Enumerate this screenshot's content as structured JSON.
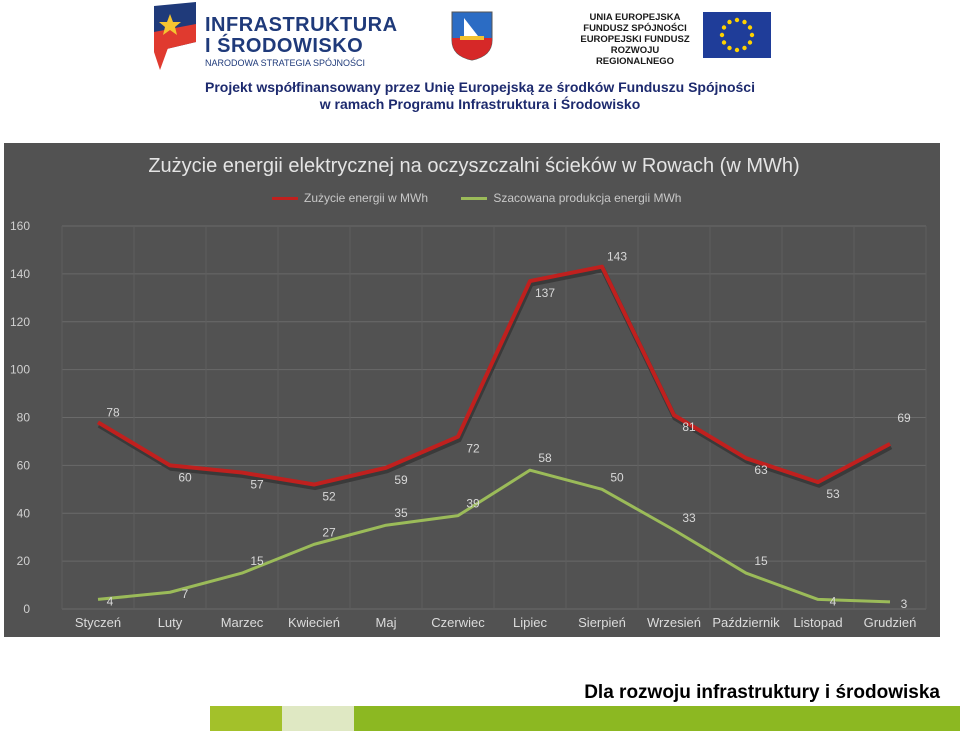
{
  "header": {
    "logo_line1": "INFRASTRUKTURA",
    "logo_line2": "I ŚRODOWISKO",
    "logo_line3": "NARODOWA STRATEGIA SPÓJNOŚCI",
    "eu_line1": "UNIA EUROPEJSKA",
    "eu_line2": "FUNDUSZ SPÓJNOŚCI",
    "eu_line3": "EUROPEJSKI FUNDUSZ",
    "eu_line4": "ROZWOJU REGIONALNEGO",
    "project_line1": "Projekt współfinansowany przez Unię Europejską ze środków Funduszu Spójności",
    "project_line2": "w ramach Programu Infrastruktura i Środowisko"
  },
  "chart_data": {
    "type": "line",
    "title": "Zużycie energii elektrycznej na oczyszczalni ścieków w Rowach (w MWh)",
    "categories": [
      "Styczeń",
      "Luty",
      "Marzec",
      "Kwiecień",
      "Maj",
      "Czerwiec",
      "Lipiec",
      "Sierpień",
      "Wrzesień",
      "Październik",
      "Listopad",
      "Grudzień"
    ],
    "series": [
      {
        "name": "Zużycie energii w MWh",
        "values": [
          78,
          60,
          57,
          52,
          59,
          72,
          137,
          143,
          81,
          63,
          53,
          69
        ],
        "color": "#c0201e"
      },
      {
        "name": "Szacowana produkcja energii MWh",
        "values": [
          4,
          7,
          15,
          27,
          35,
          39,
          58,
          50,
          33,
          15,
          4,
          3
        ],
        "color": "#9bbb59"
      }
    ],
    "ylim": [
      0,
      160
    ],
    "yticks": [
      0,
      20,
      40,
      60,
      80,
      100,
      120,
      140,
      160
    ],
    "grid": true,
    "legend_position": "top",
    "data_labels": true
  },
  "footer": {
    "slogan": "Dla rozwoju infrastruktury i środowiska",
    "bar_colors": [
      "#a3c12a",
      "#dfe8c3",
      "#8cb822"
    ]
  }
}
